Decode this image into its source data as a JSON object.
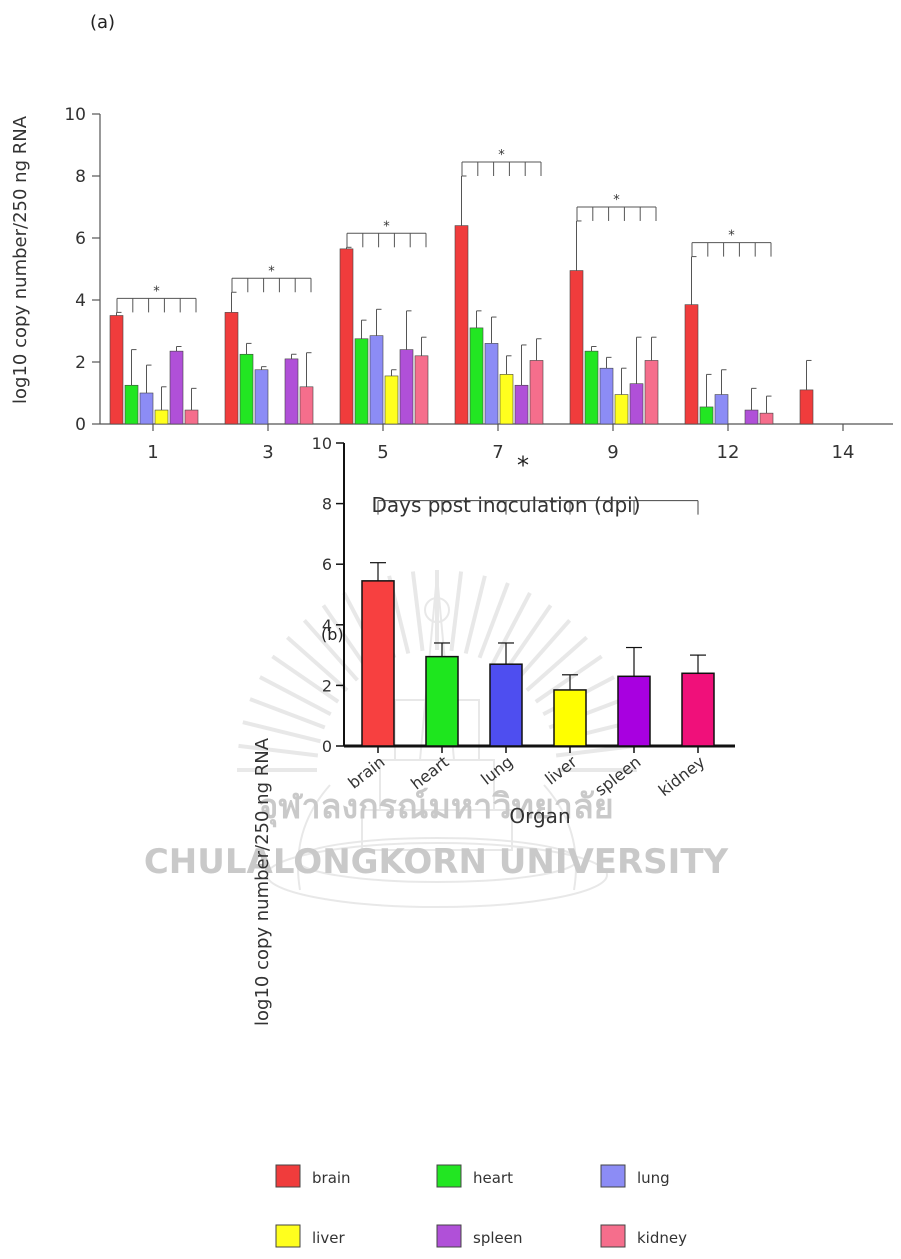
{
  "panel_a_label": "(a)",
  "panel_b_label": "(b)",
  "watermark": {
    "thai": "จุฬาลงกรณ์มหาวิทยาลัย",
    "english": "CHULALONGKORN UNIVERSITY"
  },
  "significance_marker": "*",
  "legend": [
    {
      "label": "brain",
      "color": "#f03c3c"
    },
    {
      "label": "heart",
      "color": "#22e622"
    },
    {
      "label": "lung",
      "color": "#8c8cf5"
    },
    {
      "label": "liver",
      "color": "#ffff1e"
    },
    {
      "label": "spleen",
      "color": "#b050d8"
    },
    {
      "label": "kidney",
      "color": "#f56e8c"
    }
  ],
  "chart_data": [
    {
      "type": "bar",
      "panel": "(a)",
      "xlabel": "Days post inoculation (dpi)",
      "ylabel": "log10 copy number/250 ng RNA",
      "ylim": [
        0,
        10
      ],
      "yticks": [
        "0",
        "2",
        "4",
        "6",
        "8",
        "10"
      ],
      "categories": [
        "1",
        "3",
        "5",
        "7",
        "9",
        "12",
        "14"
      ],
      "series": [
        {
          "name": "brain",
          "color": "#f03c3c",
          "values": [
            3.5,
            3.6,
            5.65,
            6.4,
            4.95,
            3.85,
            1.1
          ],
          "errors": [
            0.1,
            0.65,
            0.05,
            1.6,
            1.6,
            1.55,
            0.95
          ]
        },
        {
          "name": "heart",
          "color": "#22e622",
          "values": [
            1.25,
            2.25,
            2.75,
            3.1,
            2.35,
            0.55,
            0
          ],
          "errors": [
            1.15,
            0.35,
            0.6,
            0.55,
            0.15,
            1.05,
            0
          ]
        },
        {
          "name": "lung",
          "color": "#8c8cf5",
          "values": [
            1.0,
            1.75,
            2.85,
            2.6,
            1.8,
            0.95,
            0
          ],
          "errors": [
            0.9,
            0.1,
            0.85,
            0.85,
            0.35,
            0.8,
            0
          ]
        },
        {
          "name": "liver",
          "color": "#ffff1e",
          "values": [
            0.45,
            0,
            1.55,
            1.6,
            0.95,
            0,
            0
          ],
          "errors": [
            0.75,
            0,
            0.2,
            0.6,
            0.85,
            0,
            0
          ]
        },
        {
          "name": "spleen",
          "color": "#b050d8",
          "values": [
            2.35,
            2.1,
            2.4,
            1.25,
            1.3,
            0.45,
            0
          ],
          "errors": [
            0.15,
            0.15,
            1.25,
            1.3,
            1.5,
            0.7,
            0
          ]
        },
        {
          "name": "kidney",
          "color": "#f56e8c",
          "values": [
            0.45,
            1.2,
            2.2,
            2.05,
            2.05,
            0.35,
            0
          ],
          "errors": [
            0.7,
            1.1,
            0.6,
            0.7,
            0.75,
            0.55,
            0
          ]
        }
      ],
      "significance": [
        {
          "category": "1",
          "marker": "*"
        },
        {
          "category": "3",
          "marker": "*"
        },
        {
          "category": "5",
          "marker": "*"
        },
        {
          "category": "7",
          "marker": "*"
        },
        {
          "category": "9",
          "marker": "*"
        },
        {
          "category": "12",
          "marker": "*"
        }
      ]
    },
    {
      "type": "bar",
      "panel": "(b)",
      "xlabel": "Organ",
      "ylabel": "log10 copy number/250 ng RNA",
      "ylim": [
        0,
        10
      ],
      "yticks": [
        "0",
        "2",
        "4",
        "6",
        "8",
        "10"
      ],
      "categories": [
        "brain",
        "heart",
        "lung",
        "liver",
        "spleen",
        "kidney"
      ],
      "values": [
        5.45,
        2.95,
        2.7,
        1.85,
        2.3,
        2.4
      ],
      "errors": [
        0.6,
        0.45,
        0.7,
        0.5,
        0.95,
        0.6
      ],
      "colors": [
        "#f74040",
        "#1ee61e",
        "#4e4ef0",
        "#ffff00",
        "#a800e0",
        "#f0107a"
      ],
      "significance": {
        "marker": "*",
        "spans_all": true
      }
    }
  ]
}
